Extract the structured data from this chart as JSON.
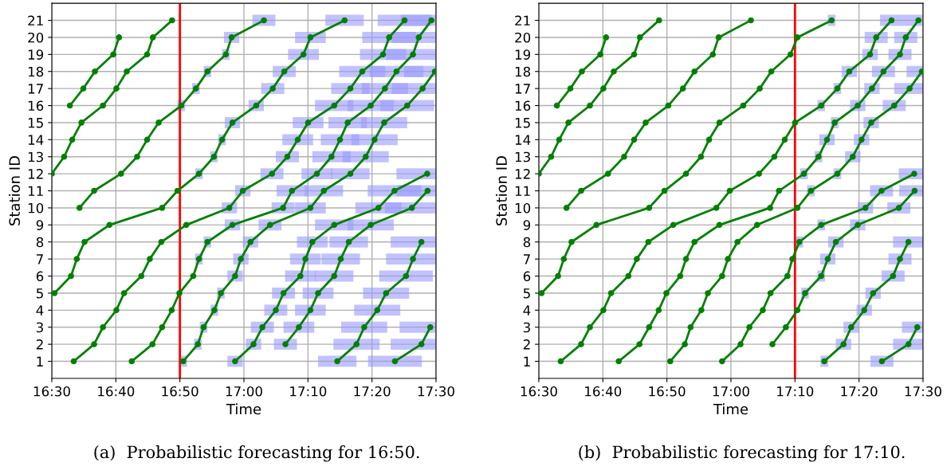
{
  "chart_data": [
    {
      "type": "line",
      "xlabel": "Time",
      "ylabel": "Station ID",
      "xlim": [
        16.5,
        17.5
      ],
      "ylim": [
        0,
        22
      ],
      "xticks": [
        {
          "value": 16.5,
          "label": "16:30"
        },
        {
          "value": 16.6667,
          "label": "16:40"
        },
        {
          "value": 16.8333,
          "label": "16:50"
        },
        {
          "value": 17.0,
          "label": "17:00"
        },
        {
          "value": 17.1667,
          "label": "17:10"
        },
        {
          "value": 17.3333,
          "label": "17:20"
        },
        {
          "value": 17.5,
          "label": "17:30"
        }
      ],
      "yticks": [
        1,
        2,
        3,
        4,
        5,
        6,
        7,
        8,
        9,
        10,
        11,
        12,
        13,
        14,
        15,
        16,
        17,
        18,
        19,
        20,
        21
      ],
      "grid": true,
      "marker": "circle",
      "line_style": "solid",
      "ref_lines": [
        {
          "axis": "x",
          "value": 16.8333,
          "color": "#ff0000"
        }
      ],
      "annotations": [
        "(a)  Probabilistic forecasting for 16:50."
      ],
      "series": [
        {
          "color": "#008000",
          "x": [
            16.547,
            16.582,
            16.612,
            16.66,
            16.675
          ],
          "values": [
            16,
            17,
            18,
            19,
            20
          ],
          "xerrors": [
            null,
            null,
            null,
            null,
            null
          ]
        },
        {
          "color": "#008000",
          "x": [
            16.5,
            16.532,
            16.553,
            16.577,
            16.633,
            16.668,
            16.695,
            16.748,
            16.763,
            16.813
          ],
          "values": [
            12,
            13,
            14,
            15,
            16,
            17,
            18,
            19,
            20,
            21
          ],
          "xerrors": [
            null,
            null,
            null,
            null,
            null,
            null,
            null,
            null,
            null,
            null
          ]
        },
        {
          "color": "#008000",
          "x": [
            16.572,
            16.61,
            16.68,
            16.722,
            16.748,
            16.778,
            16.837,
            16.875,
            16.905,
            16.953,
            16.968,
            17.052
          ],
          "values": [
            10,
            11,
            12,
            13,
            14,
            15,
            16,
            17,
            18,
            19,
            20,
            21
          ],
          "xerrors": [
            null,
            null,
            null,
            null,
            null,
            null,
            0.01,
            0.01,
            0.01,
            0.01,
            0.02,
            0.03
          ]
        },
        {
          "color": "#008000",
          "x": [
            16.507,
            16.55,
            16.565,
            16.585,
            16.65,
            16.787,
            16.827,
            16.883,
            16.922,
            16.943,
            16.97,
            17.032,
            17.075,
            17.105,
            17.155,
            17.173,
            17.262
          ],
          "values": [
            5,
            6,
            7,
            8,
            9,
            10,
            11,
            12,
            13,
            14,
            15,
            16,
            17,
            18,
            19,
            20,
            21
          ],
          "xerrors": [
            null,
            null,
            null,
            null,
            null,
            null,
            null,
            0.01,
            0.01,
            0.01,
            0.02,
            0.02,
            0.03,
            0.03,
            0.04,
            0.04,
            0.05
          ]
        },
        {
          "color": "#008000",
          "x": [
            16.557,
            16.61,
            16.633,
            16.668,
            16.688,
            16.733,
            16.755,
            16.785,
            16.85,
            16.962,
            16.997,
            17.073,
            17.113,
            17.14,
            17.167,
            17.235,
            17.277,
            17.308,
            17.362,
            17.378,
            17.418
          ],
          "values": [
            1,
            2,
            3,
            4,
            5,
            6,
            7,
            8,
            9,
            10,
            11,
            12,
            13,
            14,
            15,
            16,
            17,
            18,
            19,
            20,
            21
          ],
          "xerrors": [
            null,
            null,
            null,
            null,
            null,
            null,
            null,
            null,
            null,
            0.02,
            0.02,
            0.03,
            0.03,
            0.04,
            0.04,
            0.05,
            0.05,
            0.06,
            0.06,
            0.07,
            0.07
          ]
        },
        {
          "color": "#008000",
          "x": [
            16.708,
            16.762,
            16.787,
            16.812,
            16.832,
            16.868,
            16.883,
            16.905,
            16.97,
            17.102,
            17.125,
            17.19,
            17.228,
            17.25,
            17.27,
            17.33,
            17.367,
            17.397,
            17.44,
            17.455,
            17.488
          ],
          "values": [
            1,
            2,
            3,
            4,
            5,
            6,
            7,
            8,
            9,
            10,
            11,
            12,
            13,
            14,
            15,
            16,
            17,
            18,
            19,
            20,
            21
          ],
          "xerrors": [
            null,
            null,
            null,
            null,
            null,
            null,
            0.01,
            0.01,
            0.02,
            0.03,
            0.04,
            0.04,
            0.05,
            0.05,
            0.05,
            0.06,
            0.06,
            0.07,
            0.07,
            0.07,
            0.08
          ]
        },
        {
          "color": "#008000",
          "x": [
            16.842,
            16.88,
            16.895,
            16.923,
            16.94,
            16.977,
            16.992,
            17.017,
            17.068,
            17.173,
            17.208,
            17.277,
            17.317,
            17.34,
            17.365,
            17.425,
            17.465,
            17.497
          ],
          "values": [
            1,
            2,
            3,
            4,
            5,
            6,
            7,
            8,
            9,
            10,
            11,
            12,
            13,
            14,
            15,
            16,
            17,
            18
          ],
          "xerrors": [
            0.01,
            0.01,
            0.01,
            0.01,
            0.01,
            0.02,
            0.02,
            0.02,
            0.03,
            0.04,
            0.05,
            0.05,
            0.06,
            0.06,
            0.06,
            0.07,
            0.08,
            0.08
          ]
        },
        {
          "color": "#008000",
          "x": [
            16.977,
            17.025,
            17.048,
            17.083,
            17.103,
            17.147,
            17.16,
            17.178,
            17.235,
            17.35,
            17.392,
            17.477
          ],
          "values": [
            1,
            2,
            3,
            4,
            5,
            6,
            7,
            8,
            9,
            10,
            11,
            12
          ],
          "xerrors": [
            0.02,
            0.02,
            0.03,
            0.03,
            0.03,
            0.04,
            0.04,
            0.04,
            0.05,
            0.06,
            0.07,
            0.08
          ]
        },
        {
          "color": "#008000",
          "x": [
            17.108,
            17.143,
            17.173,
            17.193,
            17.235,
            17.252,
            17.273,
            17.33,
            17.437,
            17.478
          ],
          "values": [
            2,
            3,
            4,
            5,
            6,
            7,
            8,
            9,
            10,
            11
          ],
          "xerrors": [
            0.03,
            0.04,
            0.04,
            0.04,
            0.05,
            0.05,
            0.05,
            0.06,
            0.07,
            0.08
          ]
        },
        {
          "color": "#008000",
          "x": [
            17.243,
            17.293,
            17.313,
            17.347,
            17.37,
            17.422,
            17.44,
            17.462
          ],
          "values": [
            1,
            2,
            3,
            4,
            5,
            6,
            7,
            8
          ],
          "xerrors": [
            0.05,
            0.06,
            0.06,
            0.06,
            0.06,
            0.07,
            0.07,
            0.08
          ]
        },
        {
          "color": "#008000",
          "x": [
            17.393,
            17.462,
            17.485
          ],
          "values": [
            1,
            2,
            3
          ],
          "xerrors": [
            0.07,
            0.08,
            0.08
          ]
        }
      ]
    },
    {
      "type": "line",
      "xlabel": "Time",
      "ylabel": "Station ID",
      "xlim": [
        16.5,
        17.5
      ],
      "ylim": [
        0,
        22
      ],
      "xticks": [
        {
          "value": 16.5,
          "label": "16:30"
        },
        {
          "value": 16.6667,
          "label": "16:40"
        },
        {
          "value": 16.8333,
          "label": "16:50"
        },
        {
          "value": 17.0,
          "label": "17:00"
        },
        {
          "value": 17.1667,
          "label": "17:10"
        },
        {
          "value": 17.3333,
          "label": "17:20"
        },
        {
          "value": 17.5,
          "label": "17:30"
        }
      ],
      "yticks": [
        1,
        2,
        3,
        4,
        5,
        6,
        7,
        8,
        9,
        10,
        11,
        12,
        13,
        14,
        15,
        16,
        17,
        18,
        19,
        20,
        21
      ],
      "grid": true,
      "marker": "circle",
      "line_style": "solid",
      "ref_lines": [
        {
          "axis": "x",
          "value": 17.1667,
          "color": "#ff0000"
        }
      ],
      "annotations": [
        "(b)  Probabilistic forecasting for 17:10."
      ],
      "series": [
        {
          "color": "#008000",
          "x": [
            16.547,
            16.582,
            16.612,
            16.66,
            16.675
          ],
          "values": [
            16,
            17,
            18,
            19,
            20
          ],
          "xerrors": [
            null,
            null,
            null,
            null,
            null
          ]
        },
        {
          "color": "#008000",
          "x": [
            16.5,
            16.532,
            16.553,
            16.577,
            16.633,
            16.668,
            16.695,
            16.748,
            16.763,
            16.813
          ],
          "values": [
            12,
            13,
            14,
            15,
            16,
            17,
            18,
            19,
            20,
            21
          ],
          "xerrors": [
            null,
            null,
            null,
            null,
            null,
            null,
            null,
            null,
            null,
            null
          ]
        },
        {
          "color": "#008000",
          "x": [
            16.572,
            16.61,
            16.68,
            16.722,
            16.748,
            16.778,
            16.837,
            16.875,
            16.905,
            16.953,
            16.968,
            17.052
          ],
          "values": [
            10,
            11,
            12,
            13,
            14,
            15,
            16,
            17,
            18,
            19,
            20,
            21
          ],
          "xerrors": [
            null,
            null,
            null,
            null,
            null,
            null,
            null,
            null,
            null,
            null,
            null,
            null
          ]
        },
        {
          "color": "#008000",
          "x": [
            16.507,
            16.55,
            16.565,
            16.585,
            16.65,
            16.787,
            16.827,
            16.883,
            16.922,
            16.943,
            16.97,
            17.032,
            17.075,
            17.105,
            17.155,
            17.173,
            17.262
          ],
          "values": [
            5,
            6,
            7,
            8,
            9,
            10,
            11,
            12,
            13,
            14,
            15,
            16,
            17,
            18,
            19,
            20,
            21
          ],
          "xerrors": [
            null,
            null,
            null,
            null,
            null,
            null,
            null,
            null,
            null,
            null,
            null,
            null,
            null,
            null,
            null,
            null,
            0.01
          ]
        },
        {
          "color": "#008000",
          "x": [
            16.557,
            16.61,
            16.633,
            16.668,
            16.688,
            16.733,
            16.755,
            16.785,
            16.85,
            16.962,
            16.997,
            17.073,
            17.113,
            17.14,
            17.167,
            17.235,
            17.277,
            17.308,
            17.362,
            17.378,
            17.418
          ],
          "values": [
            1,
            2,
            3,
            4,
            5,
            6,
            7,
            8,
            9,
            10,
            11,
            12,
            13,
            14,
            15,
            16,
            17,
            18,
            19,
            20,
            21
          ],
          "xerrors": [
            null,
            null,
            null,
            null,
            null,
            null,
            null,
            null,
            null,
            null,
            null,
            null,
            null,
            null,
            null,
            0.01,
            0.01,
            0.02,
            0.02,
            0.03,
            0.03
          ]
        },
        {
          "color": "#008000",
          "x": [
            16.708,
            16.762,
            16.787,
            16.812,
            16.832,
            16.868,
            16.883,
            16.905,
            16.97,
            17.102,
            17.125,
            17.19,
            17.228,
            17.25,
            17.27,
            17.33,
            17.367,
            17.397,
            17.44,
            17.455,
            17.488
          ],
          "values": [
            1,
            2,
            3,
            4,
            5,
            6,
            7,
            8,
            9,
            10,
            11,
            12,
            13,
            14,
            15,
            16,
            17,
            18,
            19,
            20,
            21
          ],
          "xerrors": [
            null,
            null,
            null,
            null,
            null,
            null,
            null,
            null,
            null,
            null,
            null,
            0.01,
            0.01,
            0.02,
            0.01,
            0.02,
            0.02,
            0.03,
            0.03,
            0.03,
            0.04
          ]
        },
        {
          "color": "#008000",
          "x": [
            16.842,
            16.88,
            16.895,
            16.923,
            16.94,
            16.977,
            16.992,
            17.017,
            17.068,
            17.173,
            17.208,
            17.277,
            17.317,
            17.34,
            17.365,
            17.425,
            17.465,
            17.497
          ],
          "values": [
            1,
            2,
            3,
            4,
            5,
            6,
            7,
            8,
            9,
            10,
            11,
            12,
            13,
            14,
            15,
            16,
            17,
            18
          ],
          "xerrors": [
            null,
            null,
            null,
            null,
            null,
            null,
            null,
            null,
            null,
            null,
            0.01,
            0.01,
            0.02,
            0.02,
            0.02,
            0.03,
            0.04,
            0.04
          ]
        },
        {
          "color": "#008000",
          "x": [
            16.977,
            17.025,
            17.048,
            17.083,
            17.103,
            17.147,
            17.16,
            17.178,
            17.235,
            17.35,
            17.392,
            17.477
          ],
          "values": [
            1,
            2,
            3,
            4,
            5,
            6,
            7,
            8,
            9,
            10,
            11,
            12
          ],
          "xerrors": [
            null,
            null,
            null,
            null,
            null,
            null,
            null,
            0.01,
            0.01,
            0.02,
            0.03,
            0.04
          ]
        },
        {
          "color": "#008000",
          "x": [
            17.108,
            17.143,
            17.173,
            17.193,
            17.235,
            17.252,
            17.273,
            17.33,
            17.437,
            17.478
          ],
          "values": [
            2,
            3,
            4,
            5,
            6,
            7,
            8,
            9,
            10,
            11
          ],
          "xerrors": [
            null,
            null,
            null,
            0.01,
            0.01,
            0.02,
            0.02,
            0.02,
            0.03,
            0.04
          ]
        },
        {
          "color": "#008000",
          "x": [
            17.243,
            17.293,
            17.313,
            17.347,
            17.37,
            17.422,
            17.44,
            17.462
          ],
          "values": [
            1,
            2,
            3,
            4,
            5,
            6,
            7,
            8
          ],
          "xerrors": [
            0.01,
            0.02,
            0.02,
            0.02,
            0.02,
            0.03,
            0.03,
            0.04
          ]
        },
        {
          "color": "#008000",
          "x": [
            17.393,
            17.462,
            17.485
          ],
          "values": [
            1,
            2,
            3
          ],
          "xerrors": [
            0.03,
            0.04,
            0.04
          ]
        }
      ]
    }
  ]
}
